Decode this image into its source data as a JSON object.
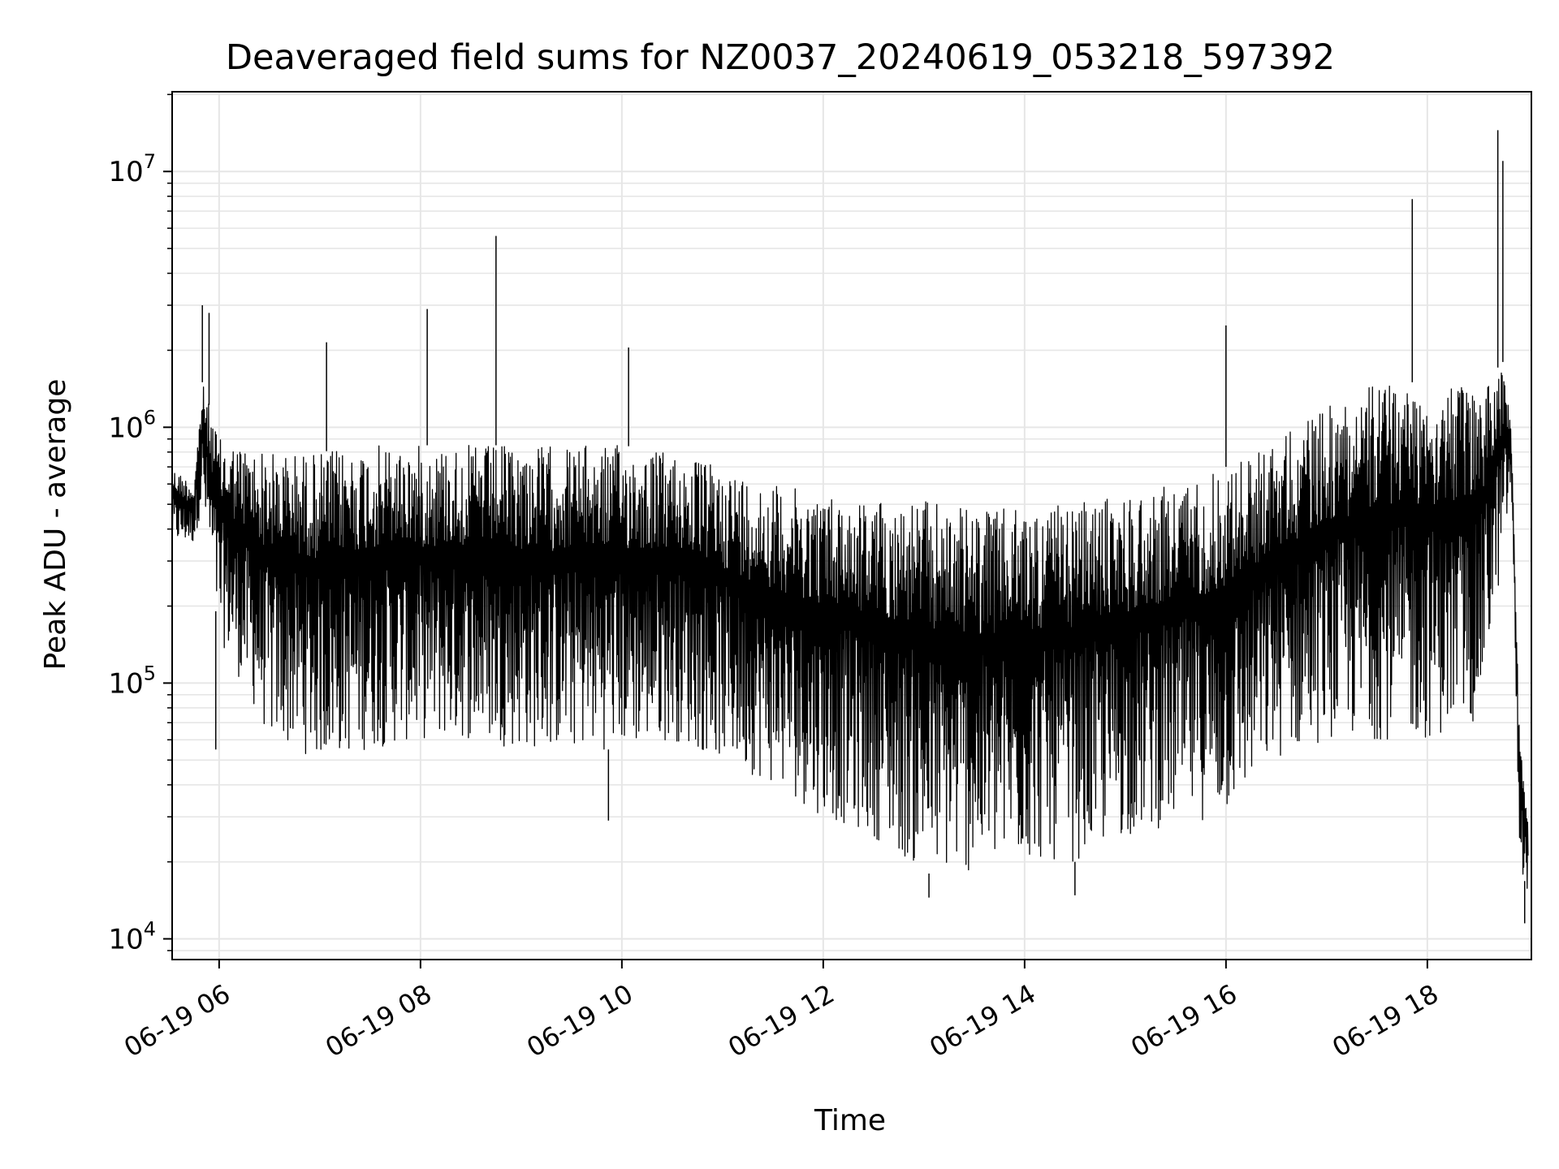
{
  "chart_data": {
    "type": "line",
    "title": "Deaveraged field sums for NZ0037_20240619_053218_597392",
    "xlabel": "Time",
    "ylabel": "Peak ADU - average",
    "yscale": "log",
    "ylim": [
      8300,
      20500000
    ],
    "xlim": [
      "2024-06-19 05:32",
      "2024-06-19 19:02"
    ],
    "x_ticks": [
      "2024-06-19 06:00",
      "2024-06-19 08:00",
      "2024-06-19 10:00",
      "2024-06-19 12:00",
      "2024-06-19 14:00",
      "2024-06-19 16:00",
      "2024-06-19 18:00"
    ],
    "x_tick_labels": [
      "06-19 06",
      "06-19 08",
      "06-19 10",
      "06-19 12",
      "06-19 14",
      "06-19 16",
      "06-19 18"
    ],
    "y_ticks": [
      10000,
      100000,
      1000000,
      10000000
    ],
    "y_tick_labels": [
      {
        "base": "10",
        "exp": "4"
      },
      {
        "base": "10",
        "exp": "5"
      },
      {
        "base": "10",
        "exp": "6"
      },
      {
        "base": "10",
        "exp": "7"
      }
    ],
    "grid": true,
    "line_color": "#000000",
    "grid_color": "#e6e6e6",
    "envelope": {
      "description_of_series": "dense noisy trace; approximate upper and lower envelope of the signal",
      "x": [
        "2024-06-19 05:32",
        "2024-06-19 05:45",
        "2024-06-19 05:50",
        "2024-06-19 06:00",
        "2024-06-19 06:30",
        "2024-06-19 07:00",
        "2024-06-19 07:30",
        "2024-06-19 08:00",
        "2024-06-19 08:30",
        "2024-06-19 09:00",
        "2024-06-19 09:30",
        "2024-06-19 10:00",
        "2024-06-19 10:30",
        "2024-06-19 11:00",
        "2024-06-19 11:30",
        "2024-06-19 12:00",
        "2024-06-19 12:30",
        "2024-06-19 13:00",
        "2024-06-19 13:30",
        "2024-06-19 14:00",
        "2024-06-19 14:30",
        "2024-06-19 15:00",
        "2024-06-19 15:30",
        "2024-06-19 16:00",
        "2024-06-19 16:30",
        "2024-06-19 17:00",
        "2024-06-19 17:30",
        "2024-06-19 18:00",
        "2024-06-19 18:30",
        "2024-06-19 18:45",
        "2024-06-19 18:50",
        "2024-06-19 18:55",
        "2024-06-19 19:00"
      ],
      "upper": [
        700000,
        600000,
        1500000,
        900000,
        800000,
        800000,
        850000,
        850000,
        850000,
        850000,
        850000,
        850000,
        800000,
        700000,
        600000,
        550000,
        520000,
        520000,
        480000,
        480000,
        500000,
        550000,
        600000,
        700000,
        900000,
        1200000,
        1500000,
        1500000,
        1400000,
        1800000,
        1000000,
        60000,
        30000
      ],
      "lower": [
        350000,
        350000,
        500000,
        150000,
        60000,
        50000,
        55000,
        60000,
        60000,
        55000,
        55000,
        55000,
        60000,
        50000,
        40000,
        30000,
        25000,
        18000,
        18000,
        20000,
        20000,
        25000,
        28000,
        30000,
        50000,
        60000,
        60000,
        60000,
        70000,
        300000,
        600000,
        20000,
        15000
      ]
    },
    "spikes": [
      {
        "x": "2024-06-19 05:50",
        "y": 3000000
      },
      {
        "x": "2024-06-19 05:54",
        "y": 2800000
      },
      {
        "x": "2024-06-19 07:04",
        "y": 2150000
      },
      {
        "x": "2024-06-19 08:04",
        "y": 2900000
      },
      {
        "x": "2024-06-19 08:45",
        "y": 5600000
      },
      {
        "x": "2024-06-19 10:04",
        "y": 2050000
      },
      {
        "x": "2024-06-19 16:00",
        "y": 2500000
      },
      {
        "x": "2024-06-19 17:51",
        "y": 7800000
      },
      {
        "x": "2024-06-19 18:42",
        "y": 14500000
      },
      {
        "x": "2024-06-19 18:45",
        "y": 11000000
      }
    ],
    "dips": [
      {
        "x": "2024-06-19 05:58",
        "y": 55000
      },
      {
        "x": "2024-06-19 09:52",
        "y": 29000
      },
      {
        "x": "2024-06-19 13:03",
        "y": 14500
      },
      {
        "x": "2024-06-19 14:30",
        "y": 14800
      },
      {
        "x": "2024-06-19 18:58",
        "y": 11500
      }
    ]
  }
}
